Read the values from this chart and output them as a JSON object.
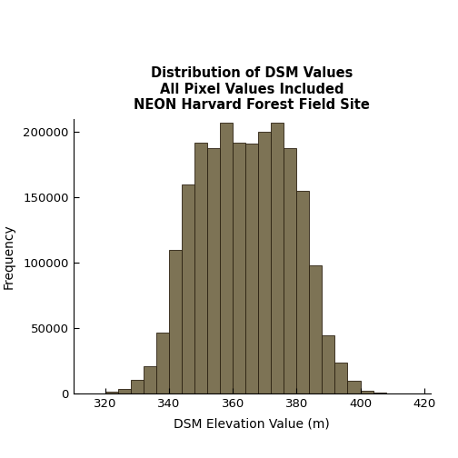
{
  "title_line1": "Distribution of DSM Values",
  "title_line2": "All Pixel Values Included",
  "title_line3": "NEON Harvard Forest Field Site",
  "xlabel": "DSM Elevation Value (m)",
  "ylabel": "Frequency",
  "bar_color": "#7d7355",
  "bar_edge_color": "#2a2010",
  "xlim": [
    310,
    422
  ],
  "ylim": [
    0,
    210000
  ],
  "xticks": [
    320,
    340,
    360,
    380,
    400,
    420
  ],
  "yticks": [
    0,
    50000,
    100000,
    150000,
    200000
  ],
  "ytick_labels": [
    "0",
    "50000",
    "100000",
    "150000",
    "200000"
  ],
  "bin_edges": [
    310,
    316,
    320,
    324,
    328,
    332,
    336,
    340,
    344,
    348,
    352,
    356,
    360,
    364,
    368,
    372,
    376,
    380,
    384,
    388,
    392,
    396,
    400,
    404,
    408,
    412,
    416,
    420
  ],
  "bin_heights": [
    100,
    400,
    1500,
    4000,
    11000,
    21000,
    47000,
    110000,
    160000,
    192000,
    188000,
    207000,
    192000,
    191000,
    200000,
    207000,
    188000,
    155000,
    98000,
    45000,
    24000,
    10000,
    2500,
    1000,
    200,
    50,
    10
  ]
}
